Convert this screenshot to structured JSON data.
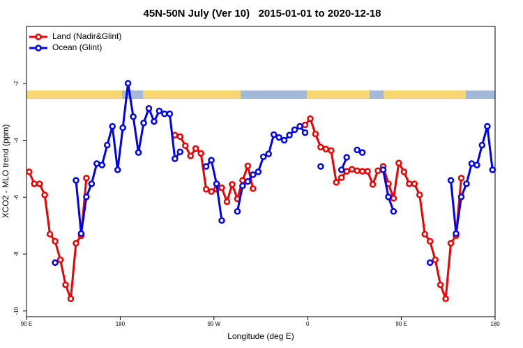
{
  "chart_data": {
    "type": "line",
    "title": "45N-50N July (Ver 10)   2015-01-01 to 2020-12-18",
    "x_label": "Longitude (deg E)",
    "y_label": "XCO2 - MLO trend (ppm)",
    "xlim": [
      90,
      540
    ],
    "ylim": [
      -10.2,
      0
    ],
    "xticks": [
      {
        "value": 90,
        "label": "90 E"
      },
      180,
      {
        "value": 270,
        "label": "90 W"
      },
      {
        "value": 360,
        "label": "0"
      },
      {
        "value": 450,
        "label": "90 E"
      },
      {
        "value": 540,
        "label": "180"
      }
    ],
    "yticks": [
      -10,
      -8,
      -6,
      -4,
      -2
    ],
    "legend": "top-left",
    "x": [
      92.5,
      97.5,
      102.5,
      107.5,
      112.5,
      117.5,
      122.5,
      127.5,
      132.5,
      137.5,
      142.5,
      147.5,
      152.5,
      157.5,
      162.5,
      167.5,
      172.5,
      177.5,
      182.5,
      187.5,
      192.5,
      197.5,
      202.5,
      207.5,
      212.5,
      217.5,
      222.5,
      227.5,
      232.5,
      237.5,
      242.5,
      247.5,
      252.5,
      257.5,
      262.5,
      267.5,
      272.5,
      277.5,
      282.5,
      287.5,
      292.5,
      297.5,
      302.5,
      307.5,
      312.5,
      317.5,
      322.5,
      327.5,
      332.5,
      337.5,
      342.5,
      347.5,
      352.5,
      357.5,
      362.5,
      367.5,
      372.5,
      377.5,
      382.5,
      387.5,
      392.5,
      397.5,
      402.5,
      407.5,
      412.5,
      417.5,
      422.5,
      427.5,
      432.5,
      437.5,
      442.5,
      447.5,
      452.5,
      457.5,
      462.5,
      467.5,
      472.5,
      477.5,
      482.5,
      487.5,
      492.5,
      497.5,
      502.5,
      507.5,
      512.5,
      517.5,
      522.5,
      527.5,
      532.5,
      537.5
    ],
    "series": [
      {
        "name": "Land (Nadir&Glint)",
        "color": "#ee0000",
        "values": [
          -5.11,
          -5.53,
          -5.53,
          -5.92,
          -7.3,
          -7.55,
          -8.2,
          -9.08,
          -9.57,
          -7.62,
          -7.35,
          -5.33,
          null,
          null,
          null,
          null,
          null,
          null,
          null,
          null,
          null,
          null,
          null,
          null,
          null,
          null,
          null,
          null,
          -3.82,
          -3.87,
          -4.19,
          -4.55,
          -4.29,
          -4.46,
          -5.72,
          -5.8,
          -5.72,
          -5.67,
          -6.16,
          -5.55,
          -6.06,
          -5.41,
          -4.9,
          -5.7,
          null,
          null,
          null,
          null,
          null,
          null,
          null,
          null,
          null,
          -3.46,
          -3.24,
          -3.78,
          -4.24,
          -4.31,
          -4.36,
          -5.48,
          -5.31,
          -5.09,
          -5.02,
          -5.07,
          -5.09,
          -5.09,
          -5.55,
          -5.07,
          -4.92,
          -5.53,
          -6.04,
          -4.8,
          -5.11,
          -5.53,
          -5.53,
          -5.92,
          -7.3,
          -7.55,
          -8.2,
          -9.08,
          -9.57,
          -7.62,
          -7.35,
          -5.33,
          null,
          null,
          null,
          null,
          null,
          null
        ]
      },
      {
        "name": "Ocean (Glint)",
        "color": "#0000ee",
        "values": [
          null,
          null,
          null,
          null,
          null,
          -8.3,
          null,
          null,
          null,
          -5.41,
          -7.28,
          -5.99,
          -5.53,
          -4.82,
          -4.87,
          -4.17,
          -3.51,
          -5.04,
          -3.56,
          -2.0,
          -3.17,
          -4.43,
          -3.39,
          -2.88,
          -3.34,
          -2.97,
          -3.07,
          -3.07,
          -4.65,
          -4.41,
          null,
          null,
          null,
          null,
          -4.92,
          -4.7,
          -5.53,
          -6.82,
          null,
          null,
          -6.5,
          -5.6,
          -5.45,
          -5.21,
          -5.11,
          -4.58,
          -4.48,
          -3.8,
          -3.9,
          -4.0,
          -3.82,
          -3.63,
          -3.51,
          -3.73,
          null,
          null,
          -4.92,
          null,
          null,
          null,
          -5.04,
          -4.6,
          null,
          -4.34,
          -4.43,
          null,
          null,
          null,
          -5.04,
          -5.99,
          -6.5,
          null,
          null,
          null,
          null,
          null,
          null,
          -8.3,
          null,
          null,
          null,
          -5.41,
          -7.28,
          -5.99,
          -5.53,
          -4.82,
          -4.87,
          -4.17,
          -3.51,
          -5.04
        ]
      }
    ]
  }
}
